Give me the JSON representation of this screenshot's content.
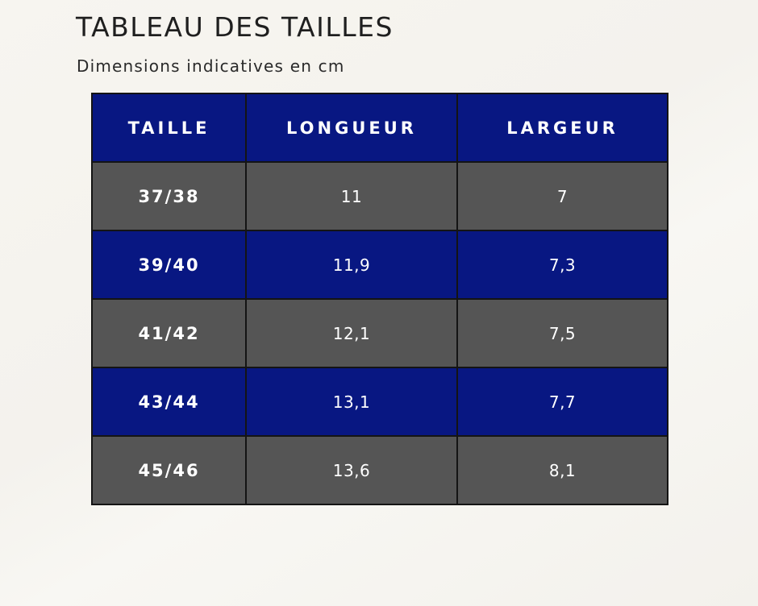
{
  "header": {
    "title": "TABLEAU DES TAILLES",
    "subtitle": "Dimensions indicatives en cm"
  },
  "table": {
    "columns": [
      "TAILLE",
      "LONGUEUR",
      "LARGEUR"
    ],
    "rows": [
      {
        "size": "37/38",
        "length": "11",
        "width": "7"
      },
      {
        "size": "39/40",
        "length": "11,9",
        "width": "7,3"
      },
      {
        "size": "41/42",
        "length": "12,1",
        "width": "7,5"
      },
      {
        "size": "43/44",
        "length": "13,1",
        "width": "7,7"
      },
      {
        "size": "45/46",
        "length": "13,6",
        "width": "8,1"
      }
    ]
  },
  "colors": {
    "header_blue": "#081782",
    "row_grey": "#555555",
    "row_blue": "#081782",
    "text_dark": "#1f1f1f",
    "text_light": "#ffffff"
  }
}
